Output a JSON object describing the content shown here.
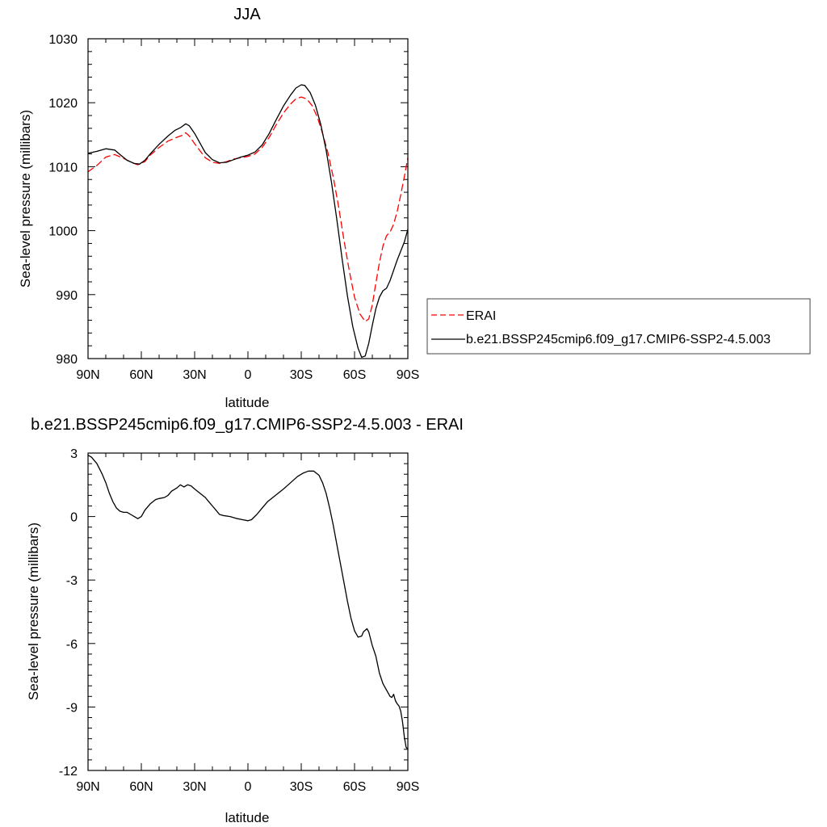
{
  "chart_data": [
    {
      "type": "line",
      "title": "JJA",
      "xlabel": "latitude",
      "ylabel": "Sea-level pressure (millibars)",
      "xlim": [
        90,
        -90
      ],
      "ylim": [
        980,
        1030
      ],
      "x_ticks": [
        90,
        60,
        30,
        0,
        -30,
        -60,
        -90
      ],
      "x_tick_labels": [
        "90N",
        "60N",
        "30N",
        "0",
        "30S",
        "60S",
        "90S"
      ],
      "y_ticks": [
        980,
        990,
        1000,
        1010,
        1020,
        1030
      ],
      "y_tick_labels": [
        "980",
        "990",
        "1000",
        "1010",
        "1020",
        "1030"
      ],
      "legend_position": "right",
      "series": [
        {
          "name": "ERAI",
          "color": "#ff0000",
          "dash": "dashed",
          "points": [
            [
              90,
              1009.2
            ],
            [
              85,
              1010.2
            ],
            [
              80,
              1011.5
            ],
            [
              75,
              1011.9
            ],
            [
              70,
              1011.3
            ],
            [
              65,
              1010.6
            ],
            [
              62,
              1010.3
            ],
            [
              58,
              1010.8
            ],
            [
              55,
              1011.8
            ],
            [
              50,
              1013.0
            ],
            [
              45,
              1014.0
            ],
            [
              40,
              1014.6
            ],
            [
              37,
              1014.9
            ],
            [
              35,
              1015.3
            ],
            [
              33,
              1014.8
            ],
            [
              30,
              1013.6
            ],
            [
              27,
              1012.5
            ],
            [
              24,
              1011.4
            ],
            [
              20,
              1010.7
            ],
            [
              16,
              1010.5
            ],
            [
              12,
              1010.8
            ],
            [
              8,
              1011.2
            ],
            [
              4,
              1011.4
            ],
            [
              0,
              1011.6
            ],
            [
              -4,
              1012.0
            ],
            [
              -8,
              1013.0
            ],
            [
              -12,
              1014.6
            ],
            [
              -16,
              1016.6
            ],
            [
              -20,
              1018.4
            ],
            [
              -24,
              1019.8
            ],
            [
              -27,
              1020.6
            ],
            [
              -30,
              1020.9
            ],
            [
              -33,
              1020.6
            ],
            [
              -36,
              1019.6
            ],
            [
              -39,
              1017.8
            ],
            [
              -42,
              1015.2
            ],
            [
              -45,
              1012.2
            ],
            [
              -48,
              1008.4
            ],
            [
              -51,
              1003.8
            ],
            [
              -54,
              998.6
            ],
            [
              -57,
              993.8
            ],
            [
              -60,
              989.6
            ],
            [
              -63,
              987.0
            ],
            [
              -66,
              985.8
            ],
            [
              -68,
              986.2
            ],
            [
              -70,
              988.4
            ],
            [
              -72,
              991.8
            ],
            [
              -74,
              995.0
            ],
            [
              -76,
              997.6
            ],
            [
              -78,
              999.2
            ],
            [
              -80,
              999.8
            ],
            [
              -82,
              1001.0
            ],
            [
              -84,
              1003.0
            ],
            [
              -86,
              1005.6
            ],
            [
              -88,
              1008.4
            ],
            [
              -90,
              1011.4
            ]
          ]
        },
        {
          "name": "b.e21.BSSP245cmip6.f09_g17.CMIP6-SSP2-4.5.003",
          "color": "#000000",
          "dash": "solid",
          "points": [
            [
              90,
              1012.1
            ],
            [
              85,
              1012.4
            ],
            [
              80,
              1012.8
            ],
            [
              75,
              1012.6
            ],
            [
              72,
              1011.9
            ],
            [
              68,
              1011.0
            ],
            [
              64,
              1010.5
            ],
            [
              61,
              1010.4
            ],
            [
              58,
              1011.0
            ],
            [
              55,
              1012.0
            ],
            [
              50,
              1013.5
            ],
            [
              45,
              1014.8
            ],
            [
              41,
              1015.7
            ],
            [
              38,
              1016.1
            ],
            [
              35,
              1016.7
            ],
            [
              33,
              1016.4
            ],
            [
              30,
              1015.2
            ],
            [
              27,
              1013.7
            ],
            [
              24,
              1012.2
            ],
            [
              20,
              1011.1
            ],
            [
              16,
              1010.6
            ],
            [
              12,
              1010.7
            ],
            [
              8,
              1011.1
            ],
            [
              4,
              1011.5
            ],
            [
              0,
              1011.8
            ],
            [
              -4,
              1012.3
            ],
            [
              -8,
              1013.4
            ],
            [
              -12,
              1015.2
            ],
            [
              -16,
              1017.4
            ],
            [
              -20,
              1019.5
            ],
            [
              -24,
              1021.2
            ],
            [
              -27,
              1022.3
            ],
            [
              -30,
              1022.8
            ],
            [
              -32,
              1022.7
            ],
            [
              -35,
              1021.6
            ],
            [
              -38,
              1019.6
            ],
            [
              -41,
              1016.6
            ],
            [
              -44,
              1012.6
            ],
            [
              -47,
              1007.6
            ],
            [
              -50,
              1001.8
            ],
            [
              -53,
              995.6
            ],
            [
              -56,
              989.8
            ],
            [
              -59,
              985.0
            ],
            [
              -62,
              981.6
            ],
            [
              -64,
              980.2
            ],
            [
              -66,
              980.4
            ],
            [
              -68,
              982.4
            ],
            [
              -70,
              985.2
            ],
            [
              -72,
              987.8
            ],
            [
              -74,
              989.6
            ],
            [
              -76,
              990.6
            ],
            [
              -78,
              991.0
            ],
            [
              -80,
              992.2
            ],
            [
              -82,
              993.8
            ],
            [
              -84,
              995.4
            ],
            [
              -86,
              996.8
            ],
            [
              -88,
              998.2
            ],
            [
              -90,
              1000.2
            ]
          ]
        }
      ]
    },
    {
      "type": "line",
      "title": "b.e21.BSSP245cmip6.f09_g17.CMIP6-SSP2-4.5.003 - ERAI",
      "xlabel": "latitude",
      "ylabel": "Sea-level pressure (millibars)",
      "xlim": [
        90,
        -90
      ],
      "ylim": [
        -12,
        3
      ],
      "x_ticks": [
        90,
        60,
        30,
        0,
        -30,
        -60,
        -90
      ],
      "x_tick_labels": [
        "90N",
        "60N",
        "30N",
        "0",
        "30S",
        "60S",
        "90S"
      ],
      "y_ticks": [
        -12,
        -9,
        -6,
        -3,
        0,
        3
      ],
      "y_tick_labels": [
        "-12",
        "-9",
        "-6",
        "-3",
        "0",
        "3"
      ],
      "series": [
        {
          "color": "#000000",
          "dash": "solid",
          "points": [
            [
              90,
              2.9
            ],
            [
              88,
              2.8
            ],
            [
              85,
              2.5
            ],
            [
              82,
              2.0
            ],
            [
              80,
              1.6
            ],
            [
              78,
              1.1
            ],
            [
              76,
              0.7
            ],
            [
              74,
              0.4
            ],
            [
              72,
              0.25
            ],
            [
              70,
              0.2
            ],
            [
              68,
              0.2
            ],
            [
              66,
              0.1
            ],
            [
              64,
              0.0
            ],
            [
              62,
              -0.1
            ],
            [
              60,
              0.0
            ],
            [
              58,
              0.3
            ],
            [
              55,
              0.6
            ],
            [
              52,
              0.8
            ],
            [
              50,
              0.85
            ],
            [
              47,
              0.9
            ],
            [
              45,
              1.0
            ],
            [
              43,
              1.2
            ],
            [
              40,
              1.35
            ],
            [
              38,
              1.5
            ],
            [
              36,
              1.4
            ],
            [
              34,
              1.5
            ],
            [
              32,
              1.45
            ],
            [
              30,
              1.3
            ],
            [
              27,
              1.1
            ],
            [
              24,
              0.9
            ],
            [
              22,
              0.7
            ],
            [
              20,
              0.5
            ],
            [
              18,
              0.3
            ],
            [
              16,
              0.1
            ],
            [
              14,
              0.05
            ],
            [
              10,
              0.0
            ],
            [
              6,
              -0.1
            ],
            [
              3,
              -0.15
            ],
            [
              0,
              -0.2
            ],
            [
              -2,
              -0.15
            ],
            [
              -5,
              0.1
            ],
            [
              -8,
              0.4
            ],
            [
              -11,
              0.7
            ],
            [
              -14,
              0.9
            ],
            [
              -17,
              1.1
            ],
            [
              -20,
              1.3
            ],
            [
              -24,
              1.6
            ],
            [
              -28,
              1.9
            ],
            [
              -31,
              2.05
            ],
            [
              -34,
              2.15
            ],
            [
              -37,
              2.15
            ],
            [
              -40,
              1.95
            ],
            [
              -42,
              1.6
            ],
            [
              -44,
              1.1
            ],
            [
              -46,
              0.4
            ],
            [
              -48,
              -0.4
            ],
            [
              -50,
              -1.3
            ],
            [
              -52,
              -2.2
            ],
            [
              -54,
              -3.1
            ],
            [
              -56,
              -4.0
            ],
            [
              -58,
              -4.8
            ],
            [
              -60,
              -5.4
            ],
            [
              -62,
              -5.7
            ],
            [
              -64,
              -5.65
            ],
            [
              -65,
              -5.45
            ],
            [
              -67,
              -5.3
            ],
            [
              -68,
              -5.45
            ],
            [
              -70,
              -6.1
            ],
            [
              -72,
              -6.6
            ],
            [
              -74,
              -7.4
            ],
            [
              -76,
              -7.9
            ],
            [
              -78,
              -8.2
            ],
            [
              -80,
              -8.5
            ],
            [
              -81,
              -8.55
            ],
            [
              -82,
              -8.4
            ],
            [
              -83,
              -8.7
            ],
            [
              -84,
              -8.85
            ],
            [
              -85,
              -8.95
            ],
            [
              -86,
              -9.2
            ],
            [
              -87,
              -9.7
            ],
            [
              -88,
              -10.4
            ],
            [
              -89,
              -10.9
            ],
            [
              -90,
              -11.0
            ]
          ]
        }
      ]
    }
  ]
}
